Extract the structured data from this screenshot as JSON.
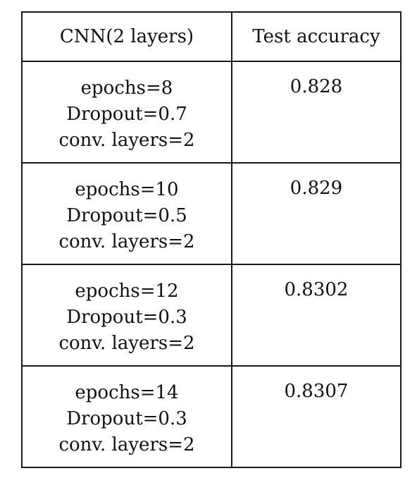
{
  "table": {
    "headers": {
      "config": "CNN(2 layers)",
      "accuracy": "Test accuracy"
    },
    "rows": [
      {
        "epochs": "epochs=8",
        "dropout": "Dropout=0.7",
        "conv_layers": "conv. layers=2",
        "accuracy": "0.828"
      },
      {
        "epochs": "epochs=10",
        "dropout": "Dropout=0.5",
        "conv_layers": "conv. layers=2",
        "accuracy": "0.829"
      },
      {
        "epochs": "epochs=12",
        "dropout": "Dropout=0.3",
        "conv_layers": "conv. layers=2",
        "accuracy": "0.8302"
      },
      {
        "epochs": "epochs=14",
        "dropout": "Dropout=0.3",
        "conv_layers": "conv. layers=2",
        "accuracy": "0.8307"
      }
    ]
  }
}
